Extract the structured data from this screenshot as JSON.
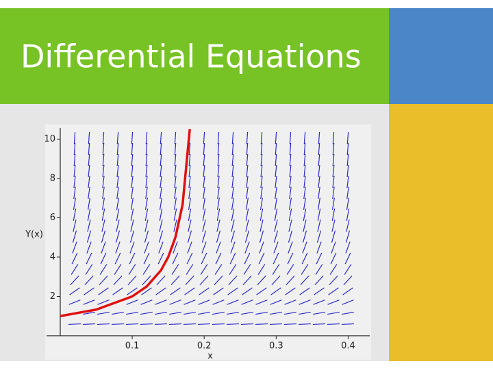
{
  "chart_data": {
    "type": "line",
    "title": "Differential Equations",
    "x_label": "x",
    "y_label": "Y(x)",
    "x": [
      0,
      0.05,
      0.1,
      0.12,
      0.14,
      0.15,
      0.16,
      0.17,
      0.18
    ],
    "series": [
      {
        "color": "#e01010",
        "values": [
          1,
          1.33,
          2,
          2.5,
          3.33,
          4,
          5,
          6.67,
          10.5
        ]
      }
    ],
    "xlim": [
      -0.019,
      0.411
    ],
    "ylim": [
      0,
      10.5
    ],
    "xticks": [
      0.1,
      0.2,
      0.3,
      0.4
    ],
    "yticks": [
      2,
      4,
      6,
      8,
      10
    ]
  }
}
